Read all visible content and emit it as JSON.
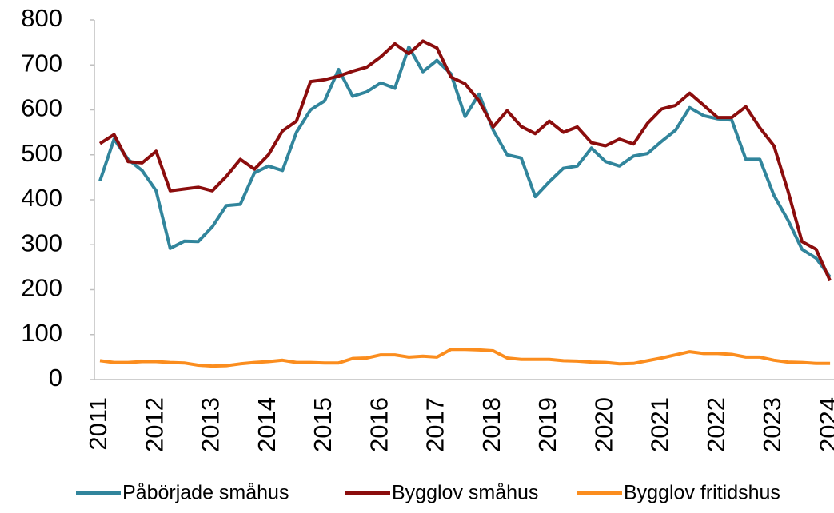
{
  "chart_data": {
    "type": "line",
    "categories": [
      "2011",
      null,
      null,
      null,
      "2012",
      null,
      null,
      null,
      "2013",
      null,
      null,
      null,
      "2014",
      null,
      null,
      null,
      "2015",
      null,
      null,
      null,
      "2016",
      null,
      null,
      null,
      "2017",
      null,
      null,
      null,
      "2018",
      null,
      null,
      null,
      "2019",
      null,
      null,
      null,
      "2020",
      null,
      null,
      null,
      "2021",
      null,
      null,
      null,
      "2022",
      null,
      null,
      null,
      "2023",
      null,
      null,
      null,
      "2024"
    ],
    "series": [
      {
        "name": "Påbörjade småhus",
        "color": "#31859c",
        "values": [
          442,
          535,
          490,
          465,
          420,
          292,
          308,
          307,
          340,
          387,
          390,
          460,
          475,
          465,
          550,
          600,
          620,
          690,
          630,
          640,
          660,
          648,
          740,
          685,
          710,
          680,
          585,
          635,
          555,
          500,
          493,
          407,
          440,
          470,
          475,
          515,
          485,
          475,
          497,
          503,
          530,
          555,
          605,
          587,
          580,
          577,
          490,
          490,
          410,
          355,
          290,
          270,
          228
        ]
      },
      {
        "name": "Bygglov småhus",
        "color": "#8b0d0d",
        "values": [
          525,
          545,
          485,
          482,
          508,
          420,
          424,
          428,
          420,
          452,
          490,
          468,
          500,
          553,
          575,
          663,
          667,
          675,
          686,
          695,
          718,
          747,
          725,
          753,
          738,
          673,
          658,
          620,
          562,
          598,
          563,
          547,
          575,
          550,
          562,
          527,
          520,
          535,
          524,
          570,
          602,
          610,
          637,
          610,
          583,
          583,
          607,
          560,
          520,
          420,
          307,
          290,
          220
        ]
      },
      {
        "name": "Bygglov fritidshus",
        "color": "#fb8d1e",
        "values": [
          42,
          38,
          38,
          40,
          40,
          38,
          37,
          32,
          30,
          31,
          35,
          38,
          40,
          43,
          38,
          38,
          37,
          37,
          47,
          48,
          55,
          55,
          50,
          52,
          50,
          67,
          67,
          66,
          64,
          48,
          45,
          45,
          45,
          42,
          41,
          39,
          38,
          35,
          36,
          42,
          48,
          55,
          62,
          58,
          58,
          56,
          50,
          50,
          43,
          39,
          38,
          36,
          36
        ]
      }
    ],
    "ylim": [
      0,
      800
    ],
    "yticks": [
      0,
      100,
      200,
      300,
      400,
      500,
      600,
      700,
      800
    ],
    "grid": false
  }
}
